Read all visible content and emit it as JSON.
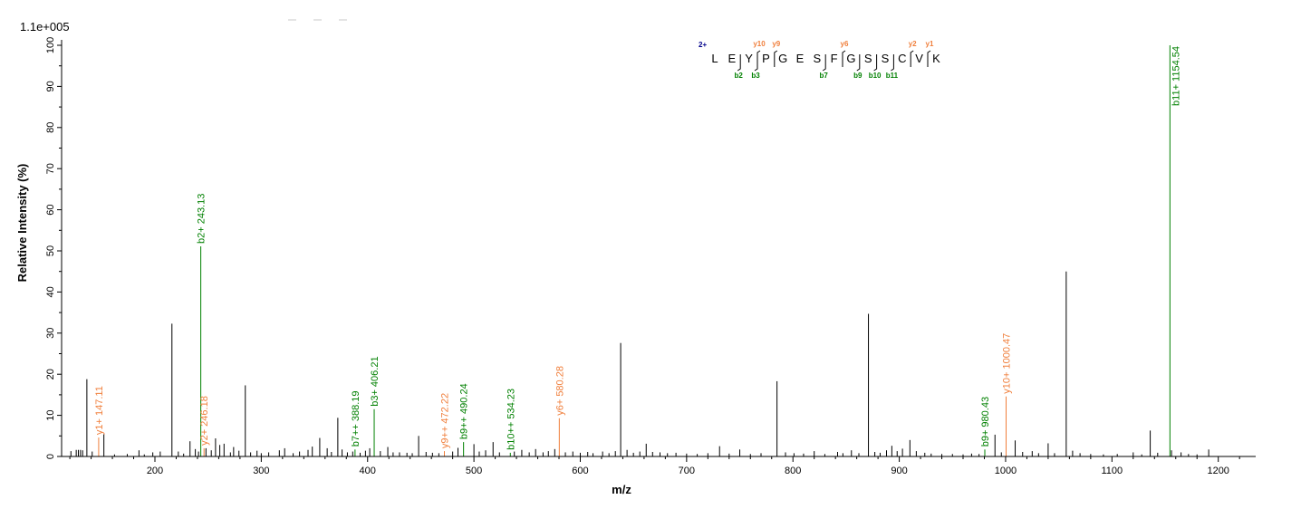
{
  "chart_data": {
    "type": "bar",
    "xlabel": "m/z",
    "ylabel": "Relative   Intensity (%)",
    "scale_label": "1.1e+005",
    "xlim": [
      118,
      1235
    ],
    "ylim": [
      0,
      100
    ],
    "x_ticks": [
      200,
      300,
      400,
      500,
      600,
      700,
      800,
      900,
      1000,
      1100,
      1200
    ],
    "y_ticks": [
      0,
      10,
      20,
      30,
      40,
      50,
      60,
      70,
      80,
      90,
      100
    ],
    "colors": {
      "y_ion": "#f07f3c",
      "b_ion": "#008000",
      "peak": "#000000",
      "charge": "#00008b"
    },
    "peaks": [
      [
        121,
        1.3
      ],
      [
        126,
        1.6
      ],
      [
        128,
        1.6
      ],
      [
        130,
        1.6
      ],
      [
        132,
        1.5
      ],
      [
        136,
        18.8
      ],
      [
        141,
        1.2
      ],
      [
        152,
        5.4
      ],
      [
        162,
        0.5
      ],
      [
        174,
        0.6
      ],
      [
        185,
        1.5
      ],
      [
        190,
        0.5
      ],
      [
        198,
        1.0
      ],
      [
        205,
        1.2
      ],
      [
        216,
        32.3
      ],
      [
        222,
        1.2
      ],
      [
        227,
        0.7
      ],
      [
        233,
        3.7
      ],
      [
        238,
        1.8
      ],
      [
        241,
        1.2
      ],
      [
        248,
        2.0
      ],
      [
        253,
        1.5
      ],
      [
        257,
        4.4
      ],
      [
        261,
        2.8
      ],
      [
        265,
        3.1
      ],
      [
        271,
        1.0
      ],
      [
        274,
        2.3
      ],
      [
        279,
        1.4
      ],
      [
        285,
        17.3
      ],
      [
        290,
        1.0
      ],
      [
        296,
        1.4
      ],
      [
        300,
        0.8
      ],
      [
        307,
        1.0
      ],
      [
        317,
        1.5
      ],
      [
        322,
        2.0
      ],
      [
        330,
        0.8
      ],
      [
        336,
        1.2
      ],
      [
        344,
        1.6
      ],
      [
        348,
        2.4
      ],
      [
        355,
        4.5
      ],
      [
        362,
        2.0
      ],
      [
        366,
        1.1
      ],
      [
        372,
        9.4
      ],
      [
        376,
        1.7
      ],
      [
        381,
        1.0
      ],
      [
        386,
        1.2
      ],
      [
        393,
        0.9
      ],
      [
        398,
        1.4
      ],
      [
        402,
        2.0
      ],
      [
        412,
        1.3
      ],
      [
        419,
        2.3
      ],
      [
        424,
        1.0
      ],
      [
        430,
        1.0
      ],
      [
        437,
        0.9
      ],
      [
        442,
        0.8
      ],
      [
        448,
        5.0
      ],
      [
        455,
        1.1
      ],
      [
        461,
        0.9
      ],
      [
        467,
        0.8
      ],
      [
        480,
        1.2
      ],
      [
        485,
        2.1
      ],
      [
        500,
        3.0
      ],
      [
        505,
        1.2
      ],
      [
        511,
        1.5
      ],
      [
        518,
        3.5
      ],
      [
        524,
        1.0
      ],
      [
        538,
        1.2
      ],
      [
        545,
        1.6
      ],
      [
        552,
        1.0
      ],
      [
        558,
        1.8
      ],
      [
        565,
        1.0
      ],
      [
        570,
        1.3
      ],
      [
        576,
        1.8
      ],
      [
        586,
        1.0
      ],
      [
        593,
        1.2
      ],
      [
        600,
        0.9
      ],
      [
        607,
        1.1
      ],
      [
        612,
        0.8
      ],
      [
        621,
        1.2
      ],
      [
        627,
        0.8
      ],
      [
        633,
        1.3
      ],
      [
        638,
        27.6
      ],
      [
        644,
        1.6
      ],
      [
        650,
        0.9
      ],
      [
        656,
        1.2
      ],
      [
        662,
        3.1
      ],
      [
        668,
        1.1
      ],
      [
        675,
        1.0
      ],
      [
        682,
        0.8
      ],
      [
        690,
        0.9
      ],
      [
        700,
        0.7
      ],
      [
        710,
        0.6
      ],
      [
        720,
        0.8
      ],
      [
        731,
        2.5
      ],
      [
        740,
        0.7
      ],
      [
        750,
        1.7
      ],
      [
        760,
        0.6
      ],
      [
        770,
        0.8
      ],
      [
        785,
        18.3
      ],
      [
        793,
        1.0
      ],
      [
        801,
        0.8
      ],
      [
        810,
        0.7
      ],
      [
        820,
        1.3
      ],
      [
        830,
        0.6
      ],
      [
        842,
        1.1
      ],
      [
        847,
        0.8
      ],
      [
        855,
        1.5
      ],
      [
        862,
        0.8
      ],
      [
        871,
        34.7
      ],
      [
        877,
        1.1
      ],
      [
        882,
        0.9
      ],
      [
        888,
        1.5
      ],
      [
        893,
        2.6
      ],
      [
        898,
        1.3
      ],
      [
        903,
        1.9
      ],
      [
        910,
        4.0
      ],
      [
        916,
        1.3
      ],
      [
        924,
        0.9
      ],
      [
        930,
        0.7
      ],
      [
        940,
        0.6
      ],
      [
        950,
        0.6
      ],
      [
        960,
        0.5
      ],
      [
        968,
        0.7
      ],
      [
        975,
        0.6
      ],
      [
        990,
        5.3
      ],
      [
        996,
        1.0
      ],
      [
        1009,
        3.9
      ],
      [
        1016,
        1.1
      ],
      [
        1025,
        1.3
      ],
      [
        1031,
        0.8
      ],
      [
        1040,
        3.2
      ],
      [
        1046,
        0.8
      ],
      [
        1057,
        45.0
      ],
      [
        1063,
        1.4
      ],
      [
        1070,
        0.8
      ],
      [
        1080,
        0.6
      ],
      [
        1092,
        0.5
      ],
      [
        1105,
        0.6
      ],
      [
        1120,
        1.0
      ],
      [
        1128,
        0.5
      ],
      [
        1136,
        6.3
      ],
      [
        1143,
        0.9
      ],
      [
        1156,
        1.5
      ],
      [
        1165,
        1.0
      ],
      [
        1172,
        0.6
      ],
      [
        1180,
        0.5
      ],
      [
        1191,
        1.7
      ]
    ],
    "annotated_peaks": [
      {
        "mz": 147.11,
        "intensity": 4.6,
        "ion": "y",
        "label": "y1+ 147.11"
      },
      {
        "mz": 243.13,
        "intensity": 51.1,
        "ion": "b",
        "label": "b2+ 243.13"
      },
      {
        "mz": 246.18,
        "intensity": 2.0,
        "ion": "y",
        "label": "y2+ 246.18"
      },
      {
        "mz": 388.19,
        "intensity": 1.7,
        "ion": "b",
        "label": "b7++ 388.19"
      },
      {
        "mz": 406.21,
        "intensity": 11.5,
        "ion": "b",
        "label": "b3+ 406.21"
      },
      {
        "mz": 472.22,
        "intensity": 1.3,
        "ion": "y",
        "label": "y9++ 472.22"
      },
      {
        "mz": 490.24,
        "intensity": 3.5,
        "ion": "b",
        "label": "b9++ 490.24"
      },
      {
        "mz": 534.23,
        "intensity": 0.9,
        "ion": "b",
        "label": "b10++ 534.23"
      },
      {
        "mz": 580.28,
        "intensity": 9.3,
        "ion": "y",
        "label": "y6+ 580.28"
      },
      {
        "mz": 980.43,
        "intensity": 1.7,
        "ion": "b",
        "label": "b9+ 980.43"
      },
      {
        "mz": 1000.47,
        "intensity": 14.6,
        "ion": "y",
        "label": "y10+ 1000.47"
      },
      {
        "mz": 1154.54,
        "intensity": 100.0,
        "ion": "b",
        "label": "b11+ 1154.54"
      }
    ],
    "sequence": {
      "charge": "2+",
      "residues": [
        "L",
        "E",
        "Y",
        "P",
        "G",
        "E",
        "S",
        "F",
        "G",
        "S",
        "S",
        "C",
        "V",
        "K"
      ],
      "y_marks": [
        {
          "after": 3,
          "label": "y10"
        },
        {
          "after": 4,
          "label": "y9"
        },
        {
          "after": 8,
          "label": "y6"
        },
        {
          "after": 12,
          "label": "y2"
        },
        {
          "after": 13,
          "label": "y1"
        }
      ],
      "b_marks": [
        {
          "after": 2,
          "label": "b2"
        },
        {
          "after": 3,
          "label": "b3"
        },
        {
          "after": 7,
          "label": "b7"
        },
        {
          "after": 9,
          "label": "b9"
        },
        {
          "after": 10,
          "label": "b10"
        },
        {
          "after": 11,
          "label": "b11"
        }
      ]
    }
  }
}
